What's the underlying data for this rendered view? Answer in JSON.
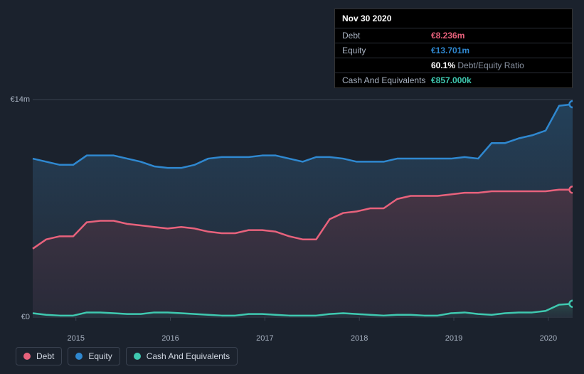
{
  "tooltip": {
    "date": "Nov 30 2020",
    "rows": [
      {
        "label": "Debt",
        "value": "€8.236m",
        "color": "#e8627c"
      },
      {
        "label": "Equity",
        "value": "€13.701m",
        "color": "#2f88d0"
      },
      {
        "label": "",
        "value": "60.1%",
        "suffix": " Debt/Equity Ratio",
        "color": "#ffffff"
      },
      {
        "label": "Cash And Equivalents",
        "value": "€857.000k",
        "color": "#3fc9b0"
      }
    ]
  },
  "chart": {
    "type": "area",
    "background_color": "#1b222d",
    "grid_color": "#3a4250",
    "ylim": [
      0,
      14
    ],
    "y_ticks": [
      {
        "v": 0,
        "label": "€0"
      },
      {
        "v": 14,
        "label": "€14m"
      }
    ],
    "x_ticks": [
      "2015",
      "2016",
      "2017",
      "2018",
      "2019",
      "2020"
    ],
    "series": [
      {
        "name": "Equity",
        "color": "#2f88d0",
        "fill_from": "#24445f",
        "fill_to": "#2a3342",
        "line_width": 2.5,
        "marker_end": true,
        "data": [
          10.2,
          10.0,
          9.8,
          9.8,
          10.4,
          10.4,
          10.4,
          10.2,
          10.0,
          9.7,
          9.6,
          9.6,
          9.8,
          10.2,
          10.3,
          10.3,
          10.3,
          10.4,
          10.4,
          10.2,
          10.0,
          10.3,
          10.3,
          10.2,
          10.0,
          10.0,
          10.0,
          10.2,
          10.2,
          10.2,
          10.2,
          10.2,
          10.3,
          10.2,
          11.2,
          11.2,
          11.5,
          11.7,
          12.0,
          13.6,
          13.7
        ]
      },
      {
        "name": "Debt",
        "color": "#e8627c",
        "fill_from": "#4a3443",
        "fill_to": "#2f2b3a",
        "line_width": 2.5,
        "marker_end": true,
        "data": [
          4.4,
          5.0,
          5.2,
          5.2,
          6.1,
          6.2,
          6.2,
          6.0,
          5.9,
          5.8,
          5.7,
          5.8,
          5.7,
          5.5,
          5.4,
          5.4,
          5.6,
          5.6,
          5.5,
          5.2,
          5.0,
          5.0,
          6.3,
          6.7,
          6.8,
          7.0,
          7.0,
          7.6,
          7.8,
          7.8,
          7.8,
          7.9,
          8.0,
          8.0,
          8.1,
          8.1,
          8.1,
          8.1,
          8.1,
          8.2,
          8.2
        ]
      },
      {
        "name": "Cash And Equivalents",
        "color": "#3fc9b0",
        "fill_from": "#2a4d4b",
        "fill_to": "#223640",
        "line_width": 2.5,
        "marker_end": true,
        "data": [
          0.25,
          0.15,
          0.1,
          0.1,
          0.3,
          0.3,
          0.25,
          0.2,
          0.2,
          0.3,
          0.3,
          0.25,
          0.2,
          0.15,
          0.1,
          0.1,
          0.2,
          0.2,
          0.15,
          0.1,
          0.1,
          0.1,
          0.2,
          0.25,
          0.2,
          0.15,
          0.1,
          0.15,
          0.15,
          0.1,
          0.1,
          0.25,
          0.3,
          0.2,
          0.15,
          0.25,
          0.3,
          0.3,
          0.4,
          0.8,
          0.86
        ]
      }
    ],
    "legend": [
      {
        "label": "Debt",
        "color": "#e8627c"
      },
      {
        "label": "Equity",
        "color": "#2f88d0"
      },
      {
        "label": "Cash And Equivalents",
        "color": "#3fc9b0"
      }
    ]
  }
}
